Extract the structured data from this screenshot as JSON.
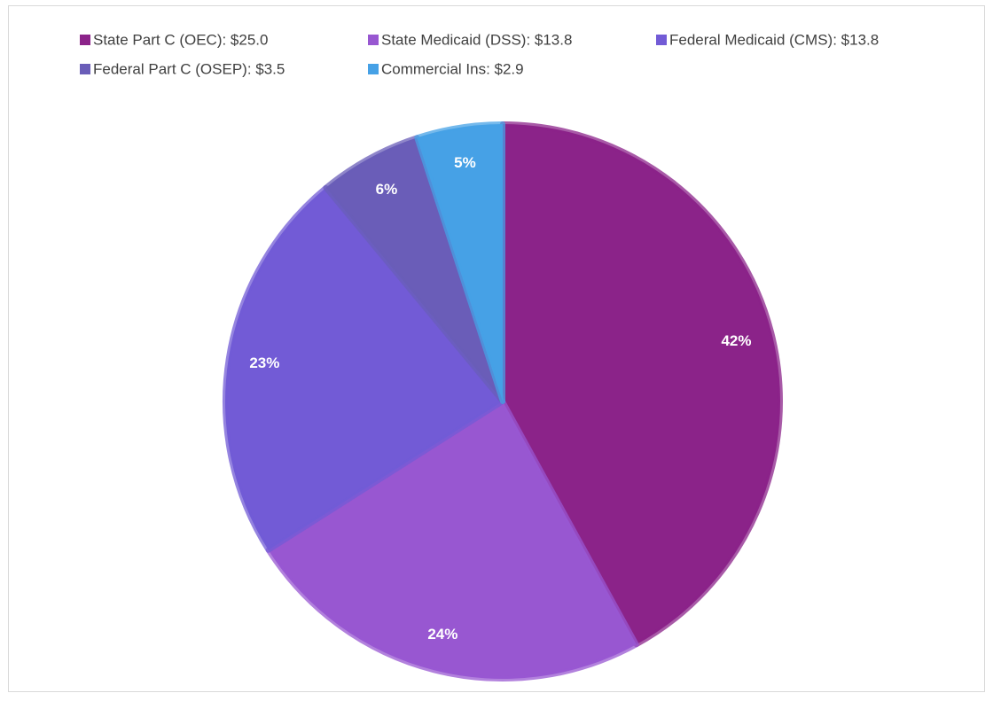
{
  "chart_data": {
    "type": "pie",
    "categories": [
      "State Part C (OEC): $25.0",
      "State Medicaid (DSS): $13.8",
      "Federal Medicaid (CMS): $13.8",
      "Federal Part C (OSEP): $3.5",
      "Commercial Ins: $2.9"
    ],
    "values": [
      42,
      24,
      23,
      6,
      5
    ],
    "value_labels": [
      "42%",
      "24%",
      "23%",
      "6%",
      "5%"
    ],
    "colors": [
      "#8B2389",
      "#9857D1",
      "#725BD6",
      "#6A5DB8",
      "#46A1E6"
    ],
    "legend": "top"
  }
}
